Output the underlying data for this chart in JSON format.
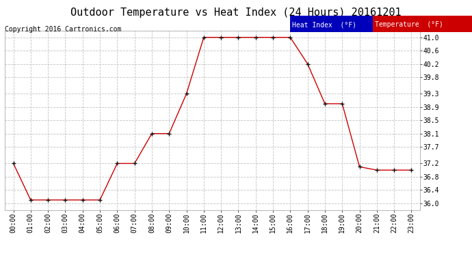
{
  "title": "Outdoor Temperature vs Heat Index (24 Hours) 20161201",
  "copyright": "Copyright 2016 Cartronics.com",
  "x_labels": [
    "00:00",
    "01:00",
    "02:00",
    "03:00",
    "04:00",
    "05:00",
    "06:00",
    "07:00",
    "08:00",
    "09:00",
    "10:00",
    "11:00",
    "12:00",
    "13:00",
    "14:00",
    "15:00",
    "16:00",
    "17:00",
    "18:00",
    "19:00",
    "20:00",
    "21:00",
    "22:00",
    "23:00"
  ],
  "temperature": [
    37.2,
    36.1,
    36.1,
    36.1,
    36.1,
    36.1,
    37.2,
    37.2,
    38.1,
    38.1,
    39.3,
    41.0,
    41.0,
    41.0,
    41.0,
    41.0,
    41.0,
    40.2,
    39.0,
    39.0,
    37.1,
    37.0,
    37.0,
    37.0
  ],
  "ylim": [
    35.8,
    41.2
  ],
  "yticks": [
    36.0,
    36.4,
    36.8,
    37.2,
    37.7,
    38.1,
    38.5,
    38.9,
    39.3,
    39.8,
    40.2,
    40.6,
    41.0
  ],
  "line_color": "#cc0000",
  "bg_color": "#ffffff",
  "grid_color": "#bbbbbb",
  "title_fontsize": 11,
  "copyright_fontsize": 7,
  "tick_fontsize": 7,
  "legend_heat_bg": "#0000bb",
  "legend_temp_bg": "#cc0000",
  "legend_text_color": "#ffffff",
  "legend_fontsize": 7
}
